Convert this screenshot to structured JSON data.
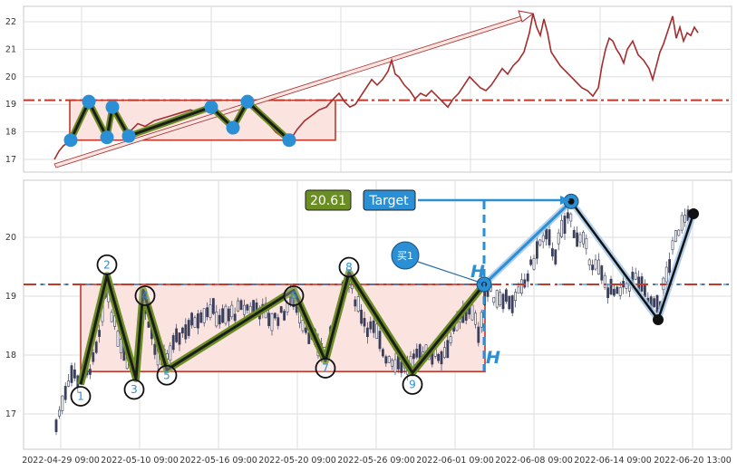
{
  "chart_data": [
    {
      "type": "line",
      "panel": "overview",
      "title": "",
      "xlabel": "",
      "ylabel": "",
      "ylim": [
        16.6,
        22.5
      ],
      "yticks": [
        "17",
        "18",
        "19",
        "20",
        "21",
        "22"
      ],
      "reference_level": 19.15,
      "pattern_box": {
        "y_from": 17.7,
        "y_to": 19.15
      },
      "colors": {
        "line": "#a32d2d",
        "pattern": "#1c1c1c",
        "pattern_outline": "#6b8e23",
        "pivot": "#2a8fd4",
        "box": "#c0392b",
        "box_fill": "#fbe3e0"
      },
      "pivots": [
        17.7,
        19.1,
        17.8,
        18.9,
        17.85,
        18.9,
        18.15,
        19.1,
        17.7
      ]
    },
    {
      "type": "candlestick",
      "panel": "main",
      "title": "",
      "xlabel": "",
      "ylabel": "",
      "ylim": [
        16.4,
        20.8
      ],
      "yticks": [
        "17",
        "18",
        "19",
        "20"
      ],
      "x_ticks": [
        "2022-04-29 09:00",
        "2022-05-10 09:00",
        "2022-05-16 09:00",
        "2022-05-20 09:00",
        "2022-05-26 09:00",
        "2022-06-01 09:00",
        "2022-06-08 09:00",
        "2022-06-14 09:00",
        "2022-06-20 13:00"
      ],
      "reference_level": 19.2,
      "pattern_box": {
        "y_from": 17.72,
        "y_to": 19.2
      },
      "pivot_labels": [
        "1",
        "2",
        "3",
        "4",
        "5",
        "6",
        "7",
        "8",
        "9"
      ],
      "pivots": [
        17.5,
        19.35,
        17.6,
        19.1,
        17.75,
        19.1,
        17.9,
        19.4,
        17.7
      ],
      "breakout_price": 19.2,
      "target_price": 20.61,
      "target_value_label": "20.61",
      "target_label": "Target",
      "buy_label": "买1",
      "breakout_marker": "H",
      "projection": [
        19.2,
        20.61,
        18.6,
        20.4
      ],
      "colors": {
        "up": "#ffffff",
        "down": "#3a3f5c",
        "pattern": "#1c1c1c",
        "pattern_outline": "#6b8e23",
        "label": "#2a8fd4",
        "value_box": "#6b8e23",
        "target_box": "#2a8fd4",
        "box": "#c0392b",
        "box_fill": "#fbe3e0",
        "ref_line": "#c0392b"
      }
    }
  ]
}
